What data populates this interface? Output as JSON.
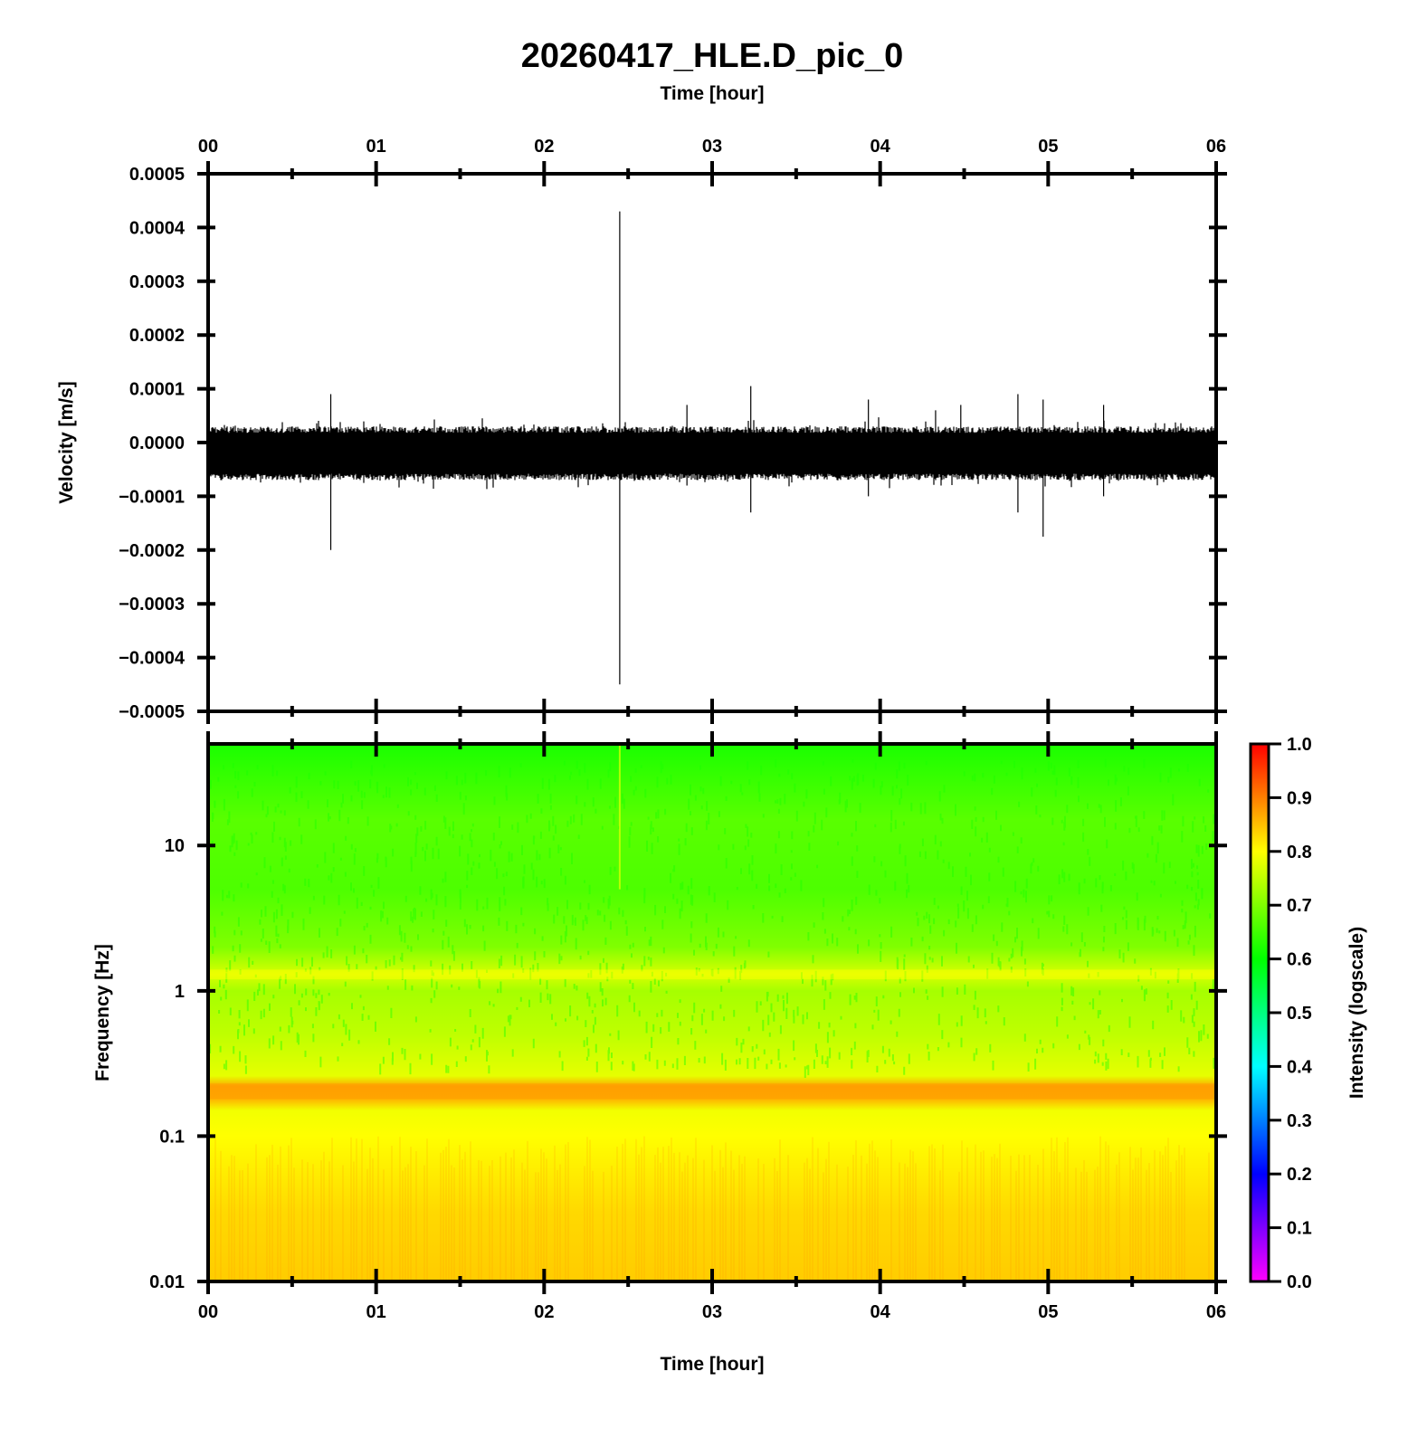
{
  "chart_data": [
    {
      "type": "line",
      "panel": "waveform",
      "title": "20260417_HLE.D_pic_0",
      "top_xlabel": "Time [hour]",
      "ylabel": "Velocity [m/s]",
      "xlim": [
        0,
        6
      ],
      "ylim": [
        -0.0005,
        0.0005
      ],
      "x_tick_labels": [
        "00",
        "01",
        "02",
        "03",
        "04",
        "05",
        "06"
      ],
      "y_ticks": [
        0.0005,
        0.0004,
        0.0003,
        0.0002,
        0.0001,
        0.0,
        -0.0001,
        -0.0002,
        -0.0003,
        -0.0004,
        -0.0005
      ],
      "y_tick_labels": [
        "0.0005",
        "0.0004",
        "0.0003",
        "0.0002",
        "0.0001",
        "0.0000",
        "−0.0001",
        "−0.0002",
        "−0.0003",
        "−0.0004",
        "−0.0005"
      ],
      "series_color": "#000000",
      "noise_band": {
        "min": -7e-05,
        "max": 3e-05
      },
      "spikes": [
        {
          "x": 0.73,
          "max": 9e-05,
          "min": -0.0002
        },
        {
          "x": 2.45,
          "max": 0.00043,
          "min": -0.00045
        },
        {
          "x": 3.23,
          "max": 0.000105,
          "min": -0.00013
        },
        {
          "x": 2.85,
          "max": 7e-05,
          "min": -8e-05
        },
        {
          "x": 3.93,
          "max": 8e-05,
          "min": -0.0001
        },
        {
          "x": 4.33,
          "max": 6e-05,
          "min": -7e-05
        },
        {
          "x": 4.48,
          "max": 7e-05,
          "min": -6e-05
        },
        {
          "x": 4.82,
          "max": 9e-05,
          "min": -0.00013
        },
        {
          "x": 4.97,
          "max": 8e-05,
          "min": -0.000175
        },
        {
          "x": 5.33,
          "max": 7e-05,
          "min": -0.0001
        }
      ]
    },
    {
      "type": "heatmap",
      "panel": "spectrogram",
      "xlabel": "Time [hour]",
      "ylabel": "Frequency [Hz]",
      "xlim": [
        0,
        6
      ],
      "ylim": [
        0.01,
        50
      ],
      "yscale": "log",
      "x_tick_labels": [
        "00",
        "01",
        "02",
        "03",
        "04",
        "05",
        "06"
      ],
      "y_ticks": [
        10,
        1,
        0.1,
        0.01
      ],
      "y_tick_labels": [
        "10",
        "1",
        "0.1",
        "0.01"
      ],
      "intensity_profile": [
        {
          "freq": 0.01,
          "value": 0.84
        },
        {
          "freq": 0.03,
          "value": 0.83
        },
        {
          "freq": 0.1,
          "value": 0.8
        },
        {
          "freq": 0.15,
          "value": 0.79
        },
        {
          "freq": 0.18,
          "value": 0.86
        },
        {
          "freq": 0.22,
          "value": 0.87
        },
        {
          "freq": 0.26,
          "value": 0.78
        },
        {
          "freq": 0.5,
          "value": 0.75
        },
        {
          "freq": 1.0,
          "value": 0.73
        },
        {
          "freq": 1.3,
          "value": 0.77
        },
        {
          "freq": 2.0,
          "value": 0.7
        },
        {
          "freq": 5.0,
          "value": 0.66
        },
        {
          "freq": 15.0,
          "value": 0.67
        },
        {
          "freq": 50.0,
          "value": 0.62
        }
      ],
      "colorbar": {
        "label": "Intensity (logscale)",
        "range": [
          0.0,
          1.0
        ],
        "tick_labels": [
          "1.0",
          "0.9",
          "0.8",
          "0.7",
          "0.6",
          "0.5",
          "0.4",
          "0.3",
          "0.2",
          "0.1",
          "0.0"
        ],
        "colors": [
          "#ff00ff",
          "#0000ff",
          "#00ffff",
          "#00ff00",
          "#ffff00",
          "#ff0000"
        ]
      }
    }
  ]
}
